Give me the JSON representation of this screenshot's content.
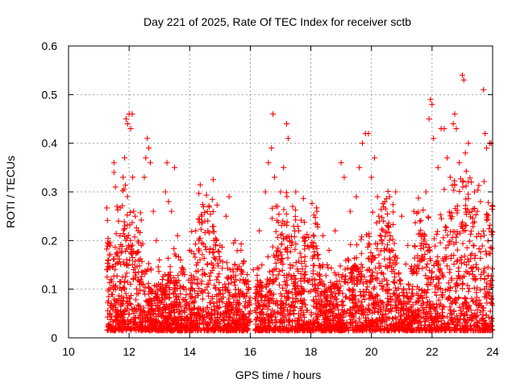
{
  "chart_data": {
    "type": "scatter",
    "title": "Day 221 of 2025, Rate Of TEC Index for receiver sctb",
    "xlabel": "GPS time / hours",
    "ylabel": "ROTI / TECUs",
    "xlim": [
      10,
      24
    ],
    "ylim": [
      0,
      0.6
    ],
    "xticks": [
      "10",
      "12",
      "14",
      "16",
      "18",
      "20",
      "22",
      "24"
    ],
    "yticks": [
      "0",
      "0.1",
      "0.2",
      "0.3",
      "0.4",
      "0.5",
      "0.6"
    ],
    "grid": true,
    "legend": "none",
    "marker": "plus",
    "color": "#ff0000",
    "series": [
      {
        "points": [
          [
            11.3,
            0.16
          ],
          [
            11.4,
            0.12
          ],
          [
            11.5,
            0.36
          ],
          [
            11.5,
            0.34
          ],
          [
            11.55,
            0.31
          ],
          [
            11.6,
            0.27
          ],
          [
            11.65,
            0.24
          ],
          [
            11.7,
            0.21
          ],
          [
            11.8,
            0.33
          ],
          [
            11.85,
            0.37
          ],
          [
            11.9,
            0.45
          ],
          [
            11.95,
            0.44
          ],
          [
            12.0,
            0.46
          ],
          [
            12.05,
            0.43
          ],
          [
            12.1,
            0.46
          ],
          [
            12.15,
            0.26
          ],
          [
            12.2,
            0.25
          ],
          [
            12.3,
            0.22
          ],
          [
            12.4,
            0.19
          ],
          [
            12.5,
            0.33
          ],
          [
            12.55,
            0.37
          ],
          [
            12.6,
            0.41
          ],
          [
            12.65,
            0.39
          ],
          [
            12.7,
            0.36
          ],
          [
            12.8,
            0.26
          ],
          [
            12.9,
            0.2
          ],
          [
            13.0,
            0.16
          ],
          [
            13.1,
            0.12
          ],
          [
            13.2,
            0.3
          ],
          [
            13.25,
            0.36
          ],
          [
            13.3,
            0.28
          ],
          [
            13.4,
            0.26
          ],
          [
            13.5,
            0.35
          ],
          [
            13.6,
            0.21
          ],
          [
            13.7,
            0.16
          ],
          [
            13.8,
            0.14
          ],
          [
            14.0,
            0.18
          ],
          [
            14.2,
            0.22
          ],
          [
            14.4,
            0.25
          ],
          [
            14.5,
            0.24
          ],
          [
            14.6,
            0.22
          ],
          [
            14.8,
            0.2
          ],
          [
            15.0,
            0.19
          ],
          [
            15.2,
            0.25
          ],
          [
            15.3,
            0.29
          ],
          [
            15.5,
            0.2
          ],
          [
            15.7,
            0.14
          ],
          [
            15.9,
            0.13
          ],
          [
            16.1,
            0.14
          ],
          [
            16.3,
            0.22
          ],
          [
            16.5,
            0.3
          ],
          [
            16.6,
            0.36
          ],
          [
            16.7,
            0.39
          ],
          [
            16.75,
            0.46
          ],
          [
            16.8,
            0.33
          ],
          [
            16.9,
            0.27
          ],
          [
            17.0,
            0.3
          ],
          [
            17.1,
            0.35
          ],
          [
            17.2,
            0.44
          ],
          [
            17.25,
            0.41
          ],
          [
            17.4,
            0.27
          ],
          [
            17.5,
            0.3
          ],
          [
            17.6,
            0.22
          ],
          [
            17.8,
            0.19
          ],
          [
            18.0,
            0.19
          ],
          [
            18.2,
            0.26
          ],
          [
            18.4,
            0.21
          ],
          [
            18.6,
            0.18
          ],
          [
            18.8,
            0.22
          ],
          [
            19.0,
            0.36
          ],
          [
            19.1,
            0.33
          ],
          [
            19.3,
            0.26
          ],
          [
            19.5,
            0.29
          ],
          [
            19.6,
            0.35
          ],
          [
            19.7,
            0.4
          ],
          [
            19.8,
            0.42
          ],
          [
            19.9,
            0.42
          ],
          [
            20.0,
            0.33
          ],
          [
            20.1,
            0.37
          ],
          [
            20.2,
            0.29
          ],
          [
            20.4,
            0.24
          ],
          [
            20.6,
            0.29
          ],
          [
            20.8,
            0.3
          ],
          [
            21.0,
            0.25
          ],
          [
            21.2,
            0.19
          ],
          [
            21.4,
            0.26
          ],
          [
            21.6,
            0.24
          ],
          [
            21.8,
            0.3
          ],
          [
            21.9,
            0.45
          ],
          [
            21.95,
            0.49
          ],
          [
            22.0,
            0.48
          ],
          [
            22.05,
            0.41
          ],
          [
            22.2,
            0.35
          ],
          [
            22.3,
            0.43
          ],
          [
            22.4,
            0.43
          ],
          [
            22.5,
            0.37
          ],
          [
            22.6,
            0.33
          ],
          [
            22.7,
            0.44
          ],
          [
            22.75,
            0.46
          ],
          [
            22.8,
            0.43
          ],
          [
            22.9,
            0.36
          ],
          [
            23.0,
            0.54
          ],
          [
            23.05,
            0.53
          ],
          [
            23.1,
            0.38
          ],
          [
            23.2,
            0.4
          ],
          [
            23.3,
            0.32
          ],
          [
            23.4,
            0.3
          ],
          [
            23.5,
            0.26
          ],
          [
            23.6,
            0.28
          ],
          [
            23.7,
            0.51
          ],
          [
            23.75,
            0.42
          ],
          [
            23.8,
            0.39
          ],
          [
            23.9,
            0.4
          ],
          [
            23.95,
            0.4
          ],
          [
            24.0,
            0.27
          ]
        ]
      }
    ]
  }
}
